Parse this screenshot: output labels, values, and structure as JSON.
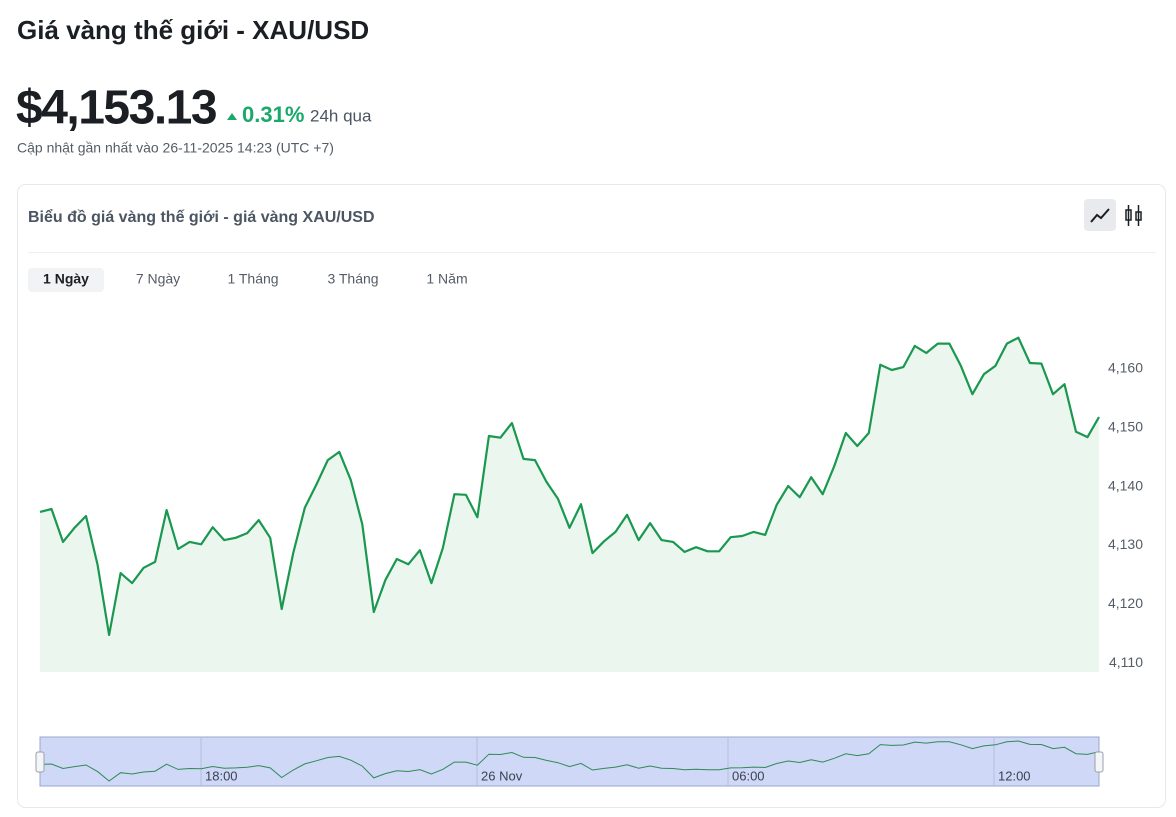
{
  "header": {
    "title": "Giá vàng thế giới - XAU/USD",
    "price": "$4,153.13",
    "change": "0.31%",
    "change_period": "24h qua",
    "updated": "Cập nhật gần nhất vào 26-11-2025 14:23 (UTC +7)"
  },
  "card": {
    "title": "Biểu đồ giá vàng thế giới - giá vàng XAU/USD",
    "tabs": [
      "1 Ngày",
      "7 Ngày",
      "1 Tháng",
      "3 Tháng",
      "1 Năm"
    ]
  },
  "chart_data": {
    "type": "line",
    "color": "#1a9850",
    "values": [
      4135.7,
      4136.2,
      4130.6,
      4133.0,
      4135.0,
      4126.7,
      4114.8,
      4125.3,
      4123.6,
      4126.2,
      4127.2,
      4136.0,
      4129.4,
      4130.6,
      4130.2,
      4133.1,
      4130.9,
      4131.3,
      4132.1,
      4134.3,
      4131.3,
      4119.2,
      4128.7,
      4136.4,
      4140.3,
      4144.5,
      4145.9,
      4141.1,
      4133.6,
      4118.7,
      4124.1,
      4127.7,
      4126.8,
      4129.2,
      4123.6,
      4129.6,
      4138.7,
      4138.6,
      4134.8,
      4148.6,
      4148.3,
      4150.8,
      4144.7,
      4144.5,
      4140.8,
      4137.9,
      4133.0,
      4137.0,
      4128.7,
      4130.7,
      4132.3,
      4135.2,
      4130.9,
      4133.8,
      4130.9,
      4130.6,
      4128.9,
      4129.7,
      4129.0,
      4129.0,
      4131.4,
      4131.6,
      4132.3,
      4131.8,
      4136.9,
      4140.1,
      4138.2,
      4141.6,
      4138.7,
      4143.5,
      4149.1,
      4146.9,
      4149.1,
      4160.7,
      4159.8,
      4160.3,
      4163.9,
      4162.7,
      4164.3,
      4164.3,
      4160.5,
      4155.7,
      4159.1,
      4160.5,
      4164.3,
      4165.3,
      4161.0,
      4160.9,
      4155.7,
      4157.4,
      4149.3,
      4148.4,
      4151.8
    ],
    "ylim": [
      4108.5,
      4170
    ],
    "yticks": [
      {
        "value": 4110,
        "label": "4,110"
      },
      {
        "value": 4120,
        "label": "4,120"
      },
      {
        "value": 4130,
        "label": "4,130"
      },
      {
        "value": 4140,
        "label": "4,140"
      },
      {
        "value": 4150,
        "label": "4,150"
      },
      {
        "value": 4160,
        "label": "4,160"
      }
    ],
    "navigator_labels": [
      "18:00",
      "26 Nov",
      "06:00",
      "12:00"
    ]
  }
}
